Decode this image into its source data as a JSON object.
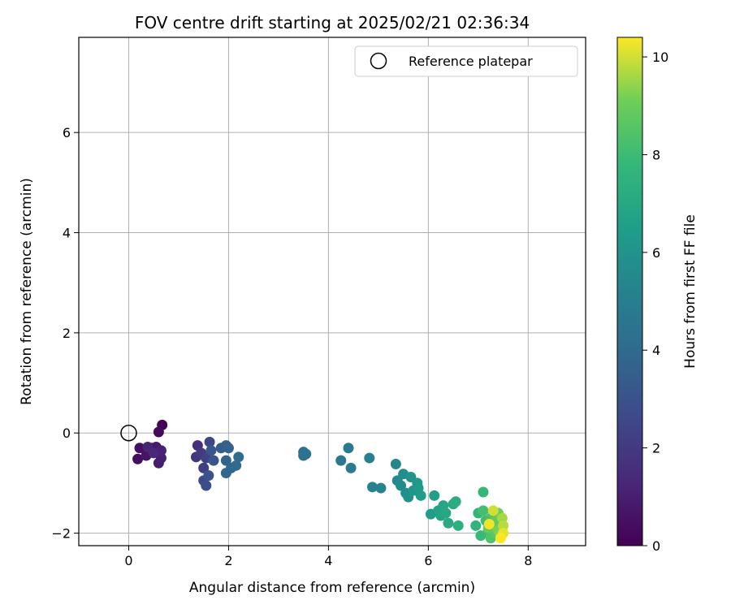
{
  "chart_data": {
    "type": "scatter",
    "title": "FOV centre drift starting at 2025/02/21 02:36:34",
    "xlabel": "Angular distance from reference (arcmin)",
    "ylabel": "Rotation from reference (arcmin)",
    "xlim": [
      -1.0,
      9.15
    ],
    "ylim": [
      -2.25,
      7.9
    ],
    "xticks": [
      0,
      2,
      4,
      6,
      8
    ],
    "yticks": [
      -2,
      0,
      2,
      4,
      6
    ],
    "grid": true,
    "legend": {
      "position": "top-right",
      "entries": [
        "Reference platepar"
      ]
    },
    "reference": {
      "x": 0,
      "y": 0,
      "label": "Reference platepar"
    },
    "colorbar": {
      "label": "Hours from first FF file",
      "min": 0,
      "max": 10.4,
      "ticks": [
        0,
        2,
        4,
        6,
        8,
        10
      ],
      "colormap": "viridis"
    },
    "points": [
      {
        "x": 0.67,
        "y": 0.16,
        "t": 0.1
      },
      {
        "x": 0.6,
        "y": 0.02,
        "t": 0.3
      },
      {
        "x": 0.18,
        "y": -0.52,
        "t": 0.4
      },
      {
        "x": 0.22,
        "y": -0.3,
        "t": 0.5
      },
      {
        "x": 0.35,
        "y": -0.45,
        "t": 0.6
      },
      {
        "x": 0.45,
        "y": -0.3,
        "t": 0.7
      },
      {
        "x": 0.55,
        "y": -0.28,
        "t": 0.8
      },
      {
        "x": 0.6,
        "y": -0.6,
        "t": 0.9
      },
      {
        "x": 0.65,
        "y": -0.5,
        "t": 1.0
      },
      {
        "x": 0.65,
        "y": -0.35,
        "t": 1.1
      },
      {
        "x": 0.38,
        "y": -0.28,
        "t": 1.2
      },
      {
        "x": 0.5,
        "y": -0.4,
        "t": 1.3
      },
      {
        "x": 1.38,
        "y": -0.25,
        "t": 1.6
      },
      {
        "x": 1.35,
        "y": -0.48,
        "t": 1.8
      },
      {
        "x": 1.45,
        "y": -0.4,
        "t": 2.0
      },
      {
        "x": 1.5,
        "y": -0.7,
        "t": 2.2
      },
      {
        "x": 1.55,
        "y": -0.5,
        "t": 2.3
      },
      {
        "x": 1.62,
        "y": -0.18,
        "t": 2.5
      },
      {
        "x": 1.5,
        "y": -0.95,
        "t": 2.7
      },
      {
        "x": 1.55,
        "y": -1.05,
        "t": 2.8
      },
      {
        "x": 1.6,
        "y": -0.85,
        "t": 3.0
      },
      {
        "x": 1.7,
        "y": -0.55,
        "t": 3.1
      },
      {
        "x": 1.65,
        "y": -0.35,
        "t": 3.2
      },
      {
        "x": 1.85,
        "y": -0.3,
        "t": 3.4
      },
      {
        "x": 1.95,
        "y": -0.25,
        "t": 3.5
      },
      {
        "x": 2.0,
        "y": -0.3,
        "t": 3.6
      },
      {
        "x": 1.95,
        "y": -0.55,
        "t": 3.7
      },
      {
        "x": 2.05,
        "y": -0.7,
        "t": 3.8
      },
      {
        "x": 1.95,
        "y": -0.8,
        "t": 3.9
      },
      {
        "x": 2.15,
        "y": -0.65,
        "t": 4.0
      },
      {
        "x": 2.2,
        "y": -0.48,
        "t": 4.1
      },
      {
        "x": 3.5,
        "y": -0.38,
        "t": 4.3
      },
      {
        "x": 3.5,
        "y": -0.45,
        "t": 4.4
      },
      {
        "x": 3.55,
        "y": -0.42,
        "t": 4.5
      },
      {
        "x": 4.25,
        "y": -0.55,
        "t": 4.7
      },
      {
        "x": 4.4,
        "y": -0.3,
        "t": 4.8
      },
      {
        "x": 4.45,
        "y": -0.7,
        "t": 4.9
      },
      {
        "x": 4.82,
        "y": -0.5,
        "t": 5.1
      },
      {
        "x": 4.88,
        "y": -1.08,
        "t": 5.2
      },
      {
        "x": 5.05,
        "y": -1.1,
        "t": 5.3
      },
      {
        "x": 5.35,
        "y": -0.62,
        "t": 5.4
      },
      {
        "x": 5.38,
        "y": -0.95,
        "t": 5.5
      },
      {
        "x": 5.45,
        "y": -1.05,
        "t": 5.6
      },
      {
        "x": 5.5,
        "y": -0.82,
        "t": 5.7
      },
      {
        "x": 5.55,
        "y": -1.2,
        "t": 5.8
      },
      {
        "x": 5.6,
        "y": -1.28,
        "t": 5.9
      },
      {
        "x": 5.65,
        "y": -0.88,
        "t": 6.0
      },
      {
        "x": 5.7,
        "y": -1.15,
        "t": 6.1
      },
      {
        "x": 5.78,
        "y": -1.0,
        "t": 6.2
      },
      {
        "x": 5.8,
        "y": -1.1,
        "t": 6.3
      },
      {
        "x": 5.85,
        "y": -1.25,
        "t": 6.4
      },
      {
        "x": 6.05,
        "y": -1.62,
        "t": 6.5
      },
      {
        "x": 6.12,
        "y": -1.25,
        "t": 6.6
      },
      {
        "x": 6.2,
        "y": -1.55,
        "t": 6.7
      },
      {
        "x": 6.25,
        "y": -1.65,
        "t": 6.8
      },
      {
        "x": 6.3,
        "y": -1.45,
        "t": 6.9
      },
      {
        "x": 6.35,
        "y": -1.6,
        "t": 7.0
      },
      {
        "x": 6.4,
        "y": -1.8,
        "t": 7.1
      },
      {
        "x": 6.5,
        "y": -1.42,
        "t": 7.2
      },
      {
        "x": 6.55,
        "y": -1.37,
        "t": 7.3
      },
      {
        "x": 6.6,
        "y": -1.85,
        "t": 7.4
      },
      {
        "x": 6.95,
        "y": -1.85,
        "t": 7.6
      },
      {
        "x": 7.0,
        "y": -1.6,
        "t": 7.7
      },
      {
        "x": 7.1,
        "y": -1.18,
        "t": 7.8
      },
      {
        "x": 7.05,
        "y": -2.05,
        "t": 7.9
      },
      {
        "x": 7.15,
        "y": -1.75,
        "t": 8.0
      },
      {
        "x": 7.2,
        "y": -1.95,
        "t": 8.1
      },
      {
        "x": 7.1,
        "y": -1.55,
        "t": 8.2
      },
      {
        "x": 7.25,
        "y": -1.7,
        "t": 8.3
      },
      {
        "x": 7.25,
        "y": -2.1,
        "t": 8.4
      },
      {
        "x": 7.3,
        "y": -1.6,
        "t": 8.5
      },
      {
        "x": 7.3,
        "y": -1.85,
        "t": 8.6
      },
      {
        "x": 7.35,
        "y": -2.0,
        "t": 8.7
      },
      {
        "x": 7.35,
        "y": -1.75,
        "t": 8.8
      },
      {
        "x": 7.2,
        "y": -1.9,
        "t": 8.9
      },
      {
        "x": 7.4,
        "y": -1.6,
        "t": 9.0
      },
      {
        "x": 7.4,
        "y": -1.95,
        "t": 9.2
      },
      {
        "x": 7.45,
        "y": -2.05,
        "t": 9.4
      },
      {
        "x": 7.48,
        "y": -1.7,
        "t": 9.6
      },
      {
        "x": 7.5,
        "y": -1.85,
        "t": 9.8
      },
      {
        "x": 7.3,
        "y": -1.55,
        "t": 10.0
      },
      {
        "x": 7.5,
        "y": -2.0,
        "t": 10.2
      },
      {
        "x": 7.22,
        "y": -1.82,
        "t": 10.3
      },
      {
        "x": 7.45,
        "y": -2.1,
        "t": 10.4
      }
    ]
  }
}
